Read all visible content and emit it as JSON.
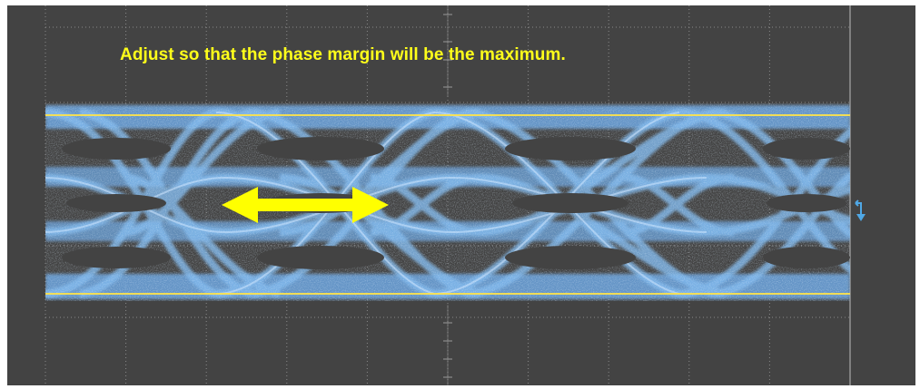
{
  "instruction": {
    "text": "Adjust so that the phase margin will be the maximum."
  },
  "colors": {
    "screen_background": "#434343",
    "eye_trace": "#7fb8ec",
    "eye_trace_bright": "#cfe6ff",
    "threshold_line": "#ffe44a",
    "annotation_text": "#ffff1a",
    "arrow": "#ffff00",
    "grid": "#8a8a8a",
    "trigger_marker": "#4fa8e6"
  },
  "icons": {
    "trigger_level_marker": "trigger-level-icon",
    "phase_margin_arrow": "double-arrow-icon"
  }
}
